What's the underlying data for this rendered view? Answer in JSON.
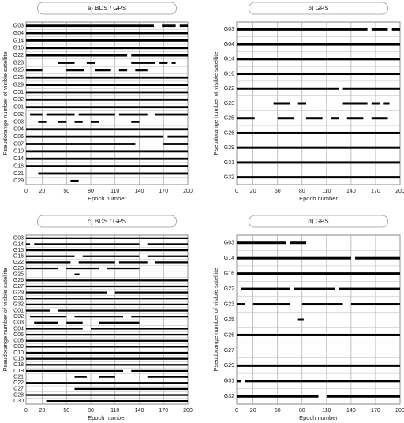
{
  "chart_data": [
    {
      "type": "timeline",
      "title": "a)   BDS / GPS",
      "x_label": "Epoch number",
      "y_label": "Pseudorange number of visible satellite",
      "xlim": [
        0,
        200
      ],
      "xticks": [
        0,
        20,
        50,
        80,
        110,
        140,
        170,
        200
      ],
      "grid": true,
      "color": "#000000",
      "categories": [
        "G03",
        "G04",
        "G14",
        "G16",
        "G22",
        "G23",
        "G25",
        "G26",
        "G29",
        "G31",
        "G32",
        "C01",
        "C02",
        "C03",
        "C04",
        "C06",
        "C07",
        "C10",
        "C14",
        "C16",
        "C21",
        "C29"
      ],
      "segments": [
        [
          [
            0,
            158
          ],
          [
            168,
            185
          ],
          [
            190,
            200
          ]
        ],
        [
          [
            0,
            200
          ]
        ],
        [
          [
            0,
            200
          ]
        ],
        [
          [
            0,
            200
          ]
        ],
        [
          [
            0,
            125
          ],
          [
            130,
            200
          ]
        ],
        [
          [
            40,
            60
          ],
          [
            75,
            85
          ],
          [
            130,
            160
          ],
          [
            165,
            175
          ],
          [
            180,
            185
          ]
        ],
        [
          [
            0,
            20
          ],
          [
            50,
            72
          ],
          [
            85,
            105
          ],
          [
            115,
            125
          ],
          [
            135,
            150
          ]
        ],
        [
          [
            0,
            200
          ]
        ],
        [
          [
            0,
            200
          ]
        ],
        [
          [
            0,
            200
          ]
        ],
        [
          [
            0,
            200
          ]
        ],
        [
          [
            0,
            200
          ]
        ],
        [
          [
            5,
            20
          ],
          [
            25,
            60
          ],
          [
            65,
            110
          ],
          [
            115,
            150
          ],
          [
            160,
            200
          ]
        ],
        [
          [
            15,
            25
          ],
          [
            40,
            50
          ],
          [
            60,
            70
          ],
          [
            80,
            90
          ],
          [
            130,
            140
          ]
        ],
        [
          [
            0,
            200
          ]
        ],
        [
          [
            0,
            170
          ],
          [
            175,
            200
          ]
        ],
        [
          [
            0,
            135
          ],
          [
            170,
            200
          ]
        ],
        [
          [
            0,
            200
          ]
        ],
        [
          [
            0,
            200
          ]
        ],
        [
          [
            0,
            200
          ]
        ],
        [
          [
            15,
            200
          ]
        ],
        [
          [
            55,
            65
          ]
        ]
      ]
    },
    {
      "type": "timeline",
      "title": "b)   GPS",
      "x_label": "Epoch number",
      "y_label": "Pseudorange number of visible satellite",
      "xlim": [
        0,
        200
      ],
      "xticks": [
        0,
        20,
        50,
        80,
        110,
        140,
        170,
        200
      ],
      "grid": true,
      "color": "#000000",
      "categories": [
        "G03",
        "G04",
        "G14",
        "G16",
        "G22",
        "G23",
        "G25",
        "G26",
        "G29",
        "G31",
        "G32"
      ],
      "segments": [
        [
          [
            0,
            160
          ],
          [
            165,
            185
          ],
          [
            190,
            200
          ]
        ],
        [
          [
            0,
            200
          ]
        ],
        [
          [
            0,
            200
          ]
        ],
        [
          [
            0,
            200
          ]
        ],
        [
          [
            0,
            125
          ],
          [
            130,
            200
          ]
        ],
        [
          [
            45,
            65
          ],
          [
            75,
            85
          ],
          [
            130,
            160
          ],
          [
            165,
            175
          ],
          [
            180,
            187
          ]
        ],
        [
          [
            0,
            22
          ],
          [
            50,
            70
          ],
          [
            85,
            105
          ],
          [
            115,
            125
          ],
          [
            135,
            155
          ],
          [
            165,
            185
          ]
        ],
        [
          [
            0,
            200
          ]
        ],
        [
          [
            0,
            200
          ]
        ],
        [
          [
            0,
            200
          ]
        ],
        [
          [
            0,
            200
          ]
        ]
      ]
    },
    {
      "type": "timeline",
      "title": "c)   BDS / GPS",
      "x_label": "Epoch number",
      "y_label": "Pseudorange number of visible satellite",
      "xlim": [
        0,
        200
      ],
      "xticks": [
        0,
        20,
        50,
        80,
        110,
        140,
        170,
        200
      ],
      "grid": true,
      "color": "#000000",
      "categories": [
        "G03",
        "G14",
        "G15",
        "G16",
        "G22",
        "G23",
        "G25",
        "G26",
        "G27",
        "G29",
        "G31",
        "G32",
        "C01",
        "C02",
        "C03",
        "C04",
        "C06",
        "C08",
        "C09",
        "C10",
        "C16",
        "C18",
        "C19",
        "C21",
        "C22",
        "C27",
        "C28",
        "C30"
      ],
      "segments": [
        [
          [
            0,
            200
          ]
        ],
        [
          [
            0,
            5
          ],
          [
            10,
            140
          ],
          [
            150,
            200
          ]
        ],
        [
          [
            0,
            200
          ]
        ],
        [
          [
            0,
            60
          ],
          [
            70,
            140
          ],
          [
            150,
            200
          ]
        ],
        [
          [
            0,
            55
          ],
          [
            65,
            110
          ],
          [
            115,
            150
          ],
          [
            160,
            200
          ]
        ],
        [
          [
            0,
            40
          ],
          [
            50,
            90
          ],
          [
            100,
            140
          ]
        ],
        [
          [
            60,
            66
          ]
        ],
        [
          [
            0,
            200
          ]
        ],
        [
          [
            0,
            200
          ]
        ],
        [
          [
            0,
            100
          ],
          [
            110,
            200
          ]
        ],
        [
          [
            0,
            200
          ]
        ],
        [
          [
            0,
            200
          ]
        ],
        [
          [
            0,
            30
          ],
          [
            40,
            200
          ]
        ],
        [
          [
            5,
            50
          ],
          [
            60,
            120
          ],
          [
            130,
            200
          ]
        ],
        [
          [
            10,
            40
          ],
          [
            50,
            70
          ],
          [
            90,
            140
          ]
        ],
        [
          [
            0,
            70
          ],
          [
            80,
            200
          ]
        ],
        [
          [
            0,
            200
          ]
        ],
        [
          [
            0,
            200
          ]
        ],
        [
          [
            0,
            200
          ]
        ],
        [
          [
            0,
            200
          ]
        ],
        [
          [
            0,
            200
          ]
        ],
        [
          [
            0,
            200
          ]
        ],
        [
          [
            0,
            120
          ],
          [
            130,
            200
          ]
        ],
        [
          [
            60,
            75
          ],
          [
            90,
            110
          ],
          [
            150,
            200
          ]
        ],
        [
          [
            0,
            200
          ]
        ],
        [
          [
            60,
            200
          ]
        ],
        [
          [
            0,
            200
          ]
        ],
        [
          [
            25,
            200
          ]
        ]
      ]
    },
    {
      "type": "timeline",
      "title": "d)   GPS",
      "x_label": "Epoch number",
      "y_label": "Pseudorange number of visible satellite",
      "xlim": [
        0,
        200
      ],
      "xticks": [
        0,
        20,
        50,
        80,
        110,
        140,
        170,
        200
      ],
      "grid": true,
      "color": "#000000",
      "categories": [
        "G03",
        "G14",
        "G16",
        "G22",
        "G23",
        "G25",
        "G26",
        "G27",
        "G29",
        "G31",
        "G32"
      ],
      "segments": [
        [
          [
            0,
            60
          ],
          [
            65,
            85
          ]
        ],
        [
          [
            0,
            140
          ],
          [
            145,
            200
          ]
        ],
        [
          [
            0,
            200
          ]
        ],
        [
          [
            5,
            65
          ],
          [
            70,
            120
          ],
          [
            125,
            200
          ]
        ],
        [
          [
            0,
            10
          ],
          [
            20,
            65
          ],
          [
            80,
            130
          ],
          [
            140,
            200
          ]
        ],
        [
          [
            75,
            82
          ]
        ],
        [
          [
            0,
            200
          ]
        ],
        [],
        [
          [
            0,
            200
          ]
        ],
        [
          [
            0,
            5
          ],
          [
            10,
            200
          ]
        ],
        [
          [
            0,
            100
          ],
          [
            110,
            200
          ]
        ]
      ]
    }
  ]
}
